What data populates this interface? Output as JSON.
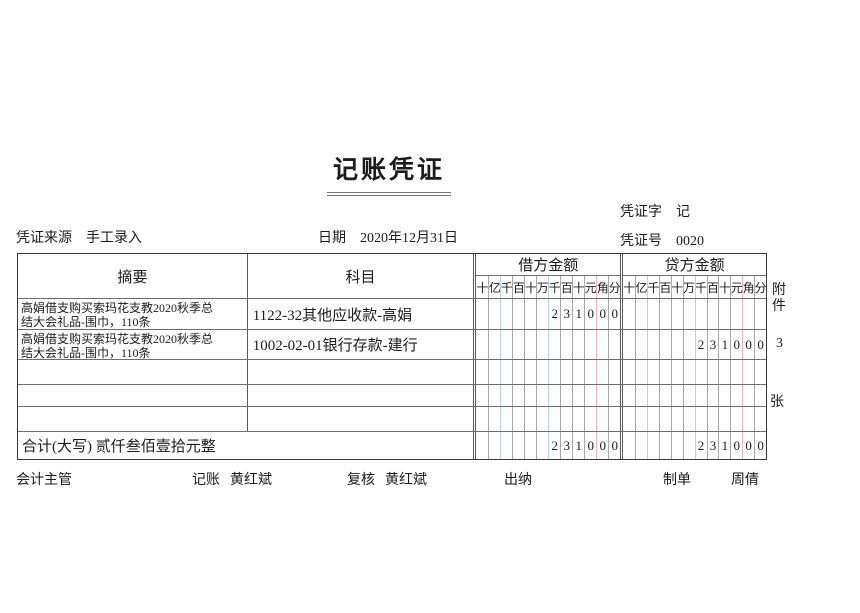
{
  "title": "记账凭证",
  "header": {
    "voucher_word_label": "凭证字",
    "voucher_word_value": "记",
    "source_label": "凭证来源",
    "source_value": "手工录入",
    "date_label": "日期",
    "date_value": "2020年12月31日",
    "voucher_no_label": "凭证号",
    "voucher_no_value": "0020"
  },
  "table": {
    "columns": {
      "summary": "摘要",
      "account": "科目",
      "debit": "借方金额",
      "credit": "贷方金额"
    },
    "digit_headers": [
      "十",
      "亿",
      "千",
      "百",
      "十",
      "万",
      "千",
      "百",
      "十",
      "元",
      "角",
      "分"
    ],
    "rows": [
      {
        "summary": "高娟借支购买索玛花支教2020秋季总结大会礼品-围巾，110条",
        "account": "1122-32其他应收款-高娟",
        "debit": "231000",
        "credit": ""
      },
      {
        "summary": "高娟借支购买索玛花支教2020秋季总结大会礼品-围巾，110条",
        "account": "1002-02-01银行存款-建行",
        "debit": "",
        "credit": "231000"
      },
      {
        "summary": "",
        "account": "",
        "debit": "",
        "credit": ""
      },
      {
        "summary": "",
        "account": "",
        "debit": "",
        "credit": ""
      },
      {
        "summary": "",
        "account": "",
        "debit": "",
        "credit": ""
      }
    ],
    "total": {
      "label": "合计(大写) 贰仟叁佰壹拾元整",
      "debit": "231000",
      "credit": "231000"
    }
  },
  "attachment": {
    "label": "附件",
    "count": "3",
    "unit": "张"
  },
  "footer": {
    "accounting_supervisor_label": "会计主管",
    "bookkeeper_label": "记账",
    "bookkeeper_value": "黄红斌",
    "reviewer_label": "复核",
    "reviewer_value": "黄红斌",
    "cashier_label": "出纳",
    "preparer_label": "制单",
    "preparer_value": "周倩"
  },
  "colors": {
    "grid_dark": "#3a3a3a",
    "grid_light": "#a9a9a9",
    "blue_line": "#b9d4e6",
    "red_line": "#e8b9c4"
  }
}
